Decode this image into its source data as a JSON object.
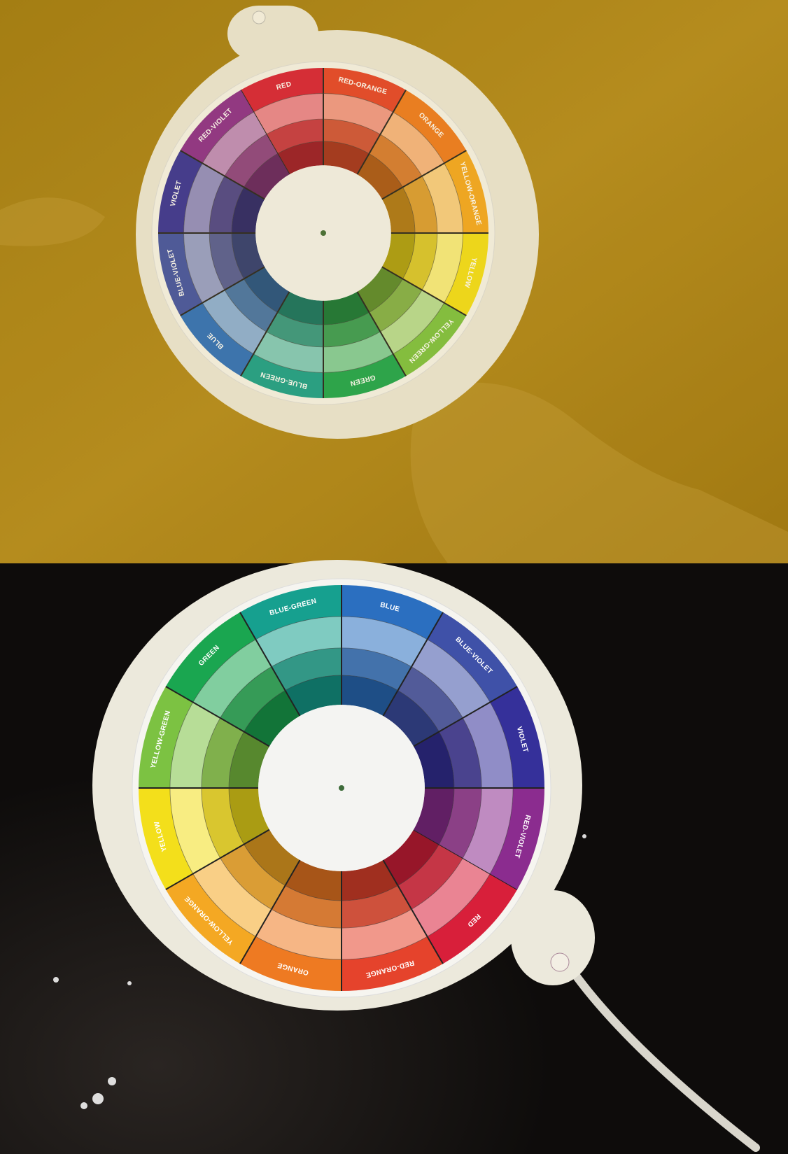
{
  "photos": [
    {
      "wheel_labels": [
        "RED",
        "RED-ORANGE",
        "ORANGE",
        "YELLOW-ORANGE",
        "YELLOW",
        "YELLOW-GREEN",
        "GREEN",
        "BLUE-GREEN",
        "BLUE",
        "BLUE-VIOLET",
        "VIOLET",
        "RED-VIOLET"
      ]
    },
    {
      "wheel_labels": [
        "RED",
        "RED-ORANGE",
        "ORANGE",
        "YELLOW-ORANGE",
        "YELLOW",
        "YELLOW-GREEN",
        "GREEN",
        "BLUE-GREEN",
        "BLUE",
        "BLUE-VIOLET",
        "VIOLET",
        "RED-VIOLET"
      ]
    }
  ]
}
